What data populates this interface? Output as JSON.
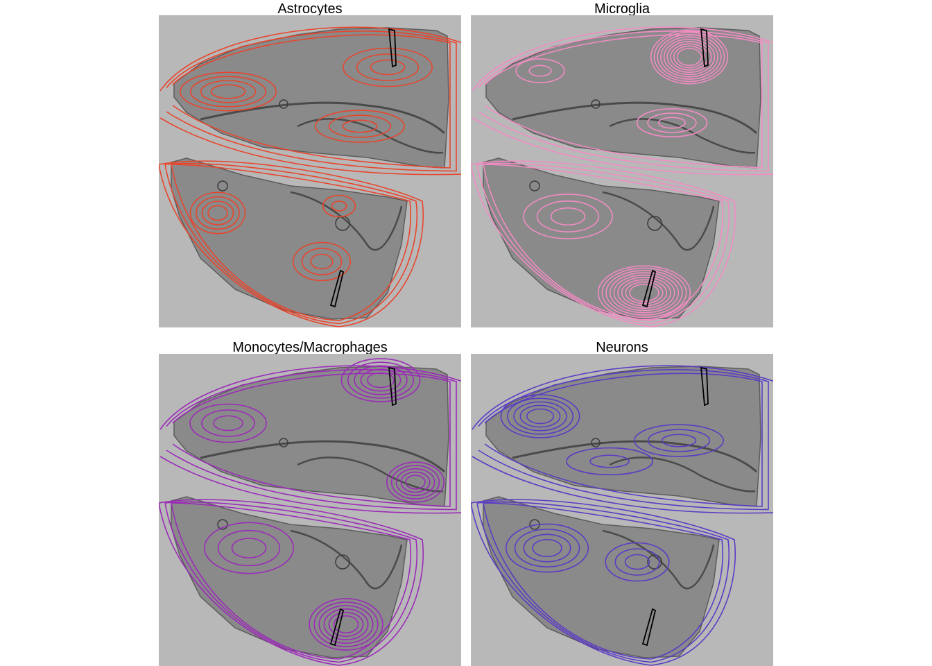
{
  "panels": [
    {
      "title": "Astrocytes",
      "contour_color": "#e8452c"
    },
    {
      "title": "Microglia",
      "contour_color": "#f28cc4"
    },
    {
      "title": "Monocytes/Macrophages",
      "contour_color": "#9b2bb8"
    },
    {
      "title": "Neurons",
      "contour_color": "#5b3bc4"
    }
  ],
  "colors": {
    "background": "#ffffff",
    "slide": "#b8b8b8",
    "tissue": "#8a8a8a",
    "tissue_edge": "#5c5c5c",
    "needle_track": "#000000"
  }
}
